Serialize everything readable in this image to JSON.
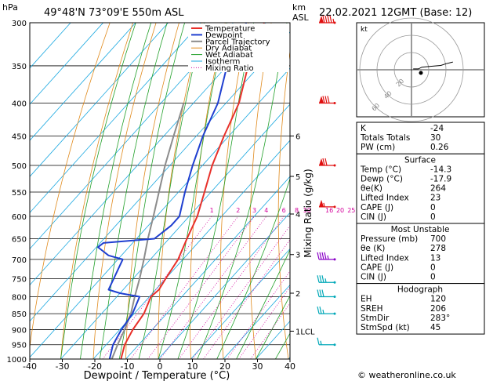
{
  "header": {
    "pressure_unit": "hPa",
    "location": "49°48'N  73°09'E  550m  ASL",
    "km_label": "km",
    "asl_label": "ASL",
    "datetime": "22.02.2021  12GMT  (Base: 12)"
  },
  "legend": [
    {
      "label": "Temperature",
      "color": "#e8302a"
    },
    {
      "label": "Dewpoint",
      "color": "#1f3fd0"
    },
    {
      "label": "Parcel Trajectory",
      "color": "#8c8c8c"
    },
    {
      "label": "Dry Adiabat",
      "color": "#e08a1c"
    },
    {
      "label": "Wet Adiabat",
      "color": "#22a02a"
    },
    {
      "label": "Isotherm",
      "color": "#1aa8e0"
    },
    {
      "label": "Mixing Ratio",
      "color": "#d4009c"
    }
  ],
  "chart_data": {
    "type": "line",
    "xlabel": "Dewpoint / Temperature (°C)",
    "ylabel": "",
    "xlim": [
      -40,
      40
    ],
    "ylim": [
      1000,
      300
    ],
    "y_scale": "log",
    "x_ticks": [
      "-40",
      "-30",
      "-20",
      "-10",
      "0",
      "10",
      "20",
      "30",
      "40"
    ],
    "pressure_levels": [
      300,
      350,
      400,
      450,
      500,
      550,
      600,
      650,
      700,
      750,
      800,
      850,
      900,
      950,
      1000
    ],
    "km_ticks": [
      {
        "p": 450,
        "label": "6"
      },
      {
        "p": 520,
        "label": "5"
      },
      {
        "p": 595,
        "label": "4"
      },
      {
        "p": 688,
        "label": "3"
      },
      {
        "p": 790,
        "label": "2"
      },
      {
        "p": 905,
        "label": "1LCL"
      }
    ],
    "mixing_ratio_label": "Mixing Ratio (g/kg)",
    "mixing_ratios": [
      "1",
      "2",
      "3",
      "4",
      "6",
      "8",
      "10",
      "16",
      "20",
      "25"
    ],
    "temperature": {
      "name": "Temperature",
      "p": [
        1000,
        950,
        900,
        850,
        800,
        780,
        750,
        700,
        650,
        600,
        550,
        500,
        450,
        400,
        350,
        300
      ],
      "t": [
        -11.5,
        -14.3,
        -16.0,
        -17.0,
        -19.5,
        -19.0,
        -20.0,
        -21.5,
        -24.5,
        -27.5,
        -32.0,
        -37.0,
        -41.5,
        -46.0,
        -53.5,
        -60.5
      ]
    },
    "dewpoint": {
      "name": "Dewpoint",
      "p": [
        1000,
        950,
        900,
        850,
        800,
        790,
        780,
        700,
        690,
        670,
        660,
        650,
        620,
        600,
        550,
        500,
        450,
        400,
        350,
        300
      ],
      "t": [
        -15.0,
        -17.9,
        -19.5,
        -20.5,
        -23.0,
        -30.0,
        -34.5,
        -38.5,
        -44.0,
        -49.5,
        -49.0,
        -34.5,
        -33.0,
        -33.0,
        -38.0,
        -43.0,
        -48.0,
        -52.5,
        -60.0,
        -66.0
      ]
    },
    "parcel": {
      "name": "Parcel Trajectory",
      "p": [
        1000,
        950,
        900,
        850,
        800,
        750,
        700,
        650,
        600,
        550,
        500,
        450,
        400
      ],
      "t": [
        -14.3,
        -16.5,
        -18.5,
        -21.0,
        -24.5,
        -28.0,
        -32.0,
        -36.5,
        -41.0,
        -46.0,
        -51.5,
        -57.0,
        -63.0
      ]
    },
    "wind_barbs": [
      {
        "p": 300,
        "dir": 260,
        "spd": 95
      },
      {
        "p": 400,
        "dir": 260,
        "spd": 80
      },
      {
        "p": 500,
        "dir": 260,
        "spd": 70
      },
      {
        "p": 580,
        "dir": 265,
        "spd": 55
      },
      {
        "p": 700,
        "dir": 270,
        "spd": 45
      },
      {
        "p": 760,
        "dir": 280,
        "spd": 35
      },
      {
        "p": 800,
        "dir": 285,
        "spd": 30
      },
      {
        "p": 850,
        "dir": 290,
        "spd": 25
      },
      {
        "p": 950,
        "dir": 300,
        "spd": 15
      }
    ]
  },
  "hodograph": {
    "unit_label": "kt",
    "ring_labels": [
      "20",
      "40",
      "60"
    ],
    "points": [
      [
        2,
        1
      ],
      [
        8,
        1
      ],
      [
        12,
        3
      ],
      [
        22,
        4
      ],
      [
        34,
        5
      ],
      [
        40,
        7
      ],
      [
        48,
        9
      ]
    ]
  },
  "indices": [
    {
      "label": "K",
      "value": "-24"
    },
    {
      "label": "Totals Totals",
      "value": "30"
    },
    {
      "label": "PW (cm)",
      "value": "0.26"
    }
  ],
  "surface": {
    "title": "Surface",
    "rows": [
      {
        "label": "Temp (°C)",
        "value": "-14.3"
      },
      {
        "label": "Dewp (°C)",
        "value": "-17.9"
      },
      {
        "label": "θe(K)",
        "value": "264"
      },
      {
        "label": "Lifted Index",
        "value": "23"
      },
      {
        "label": "CAPE (J)",
        "value": "0"
      },
      {
        "label": "CIN (J)",
        "value": "0"
      }
    ]
  },
  "most_unstable": {
    "title": "Most Unstable",
    "rows": [
      {
        "label": "Pressure (mb)",
        "value": "700"
      },
      {
        "label": "θe (K)",
        "value": "278"
      },
      {
        "label": "Lifted Index",
        "value": "13"
      },
      {
        "label": "CAPE (J)",
        "value": "0"
      },
      {
        "label": "CIN (J)",
        "value": "0"
      }
    ]
  },
  "hodo_table": {
    "title": "Hodograph",
    "rows": [
      {
        "label": "EH",
        "value": "120"
      },
      {
        "label": "SREH",
        "value": "206"
      },
      {
        "label": "StmDir",
        "value": "283°"
      },
      {
        "label": "StmSpd (kt)",
        "value": "45"
      }
    ]
  },
  "copyright": "© weatheronline.co.uk"
}
